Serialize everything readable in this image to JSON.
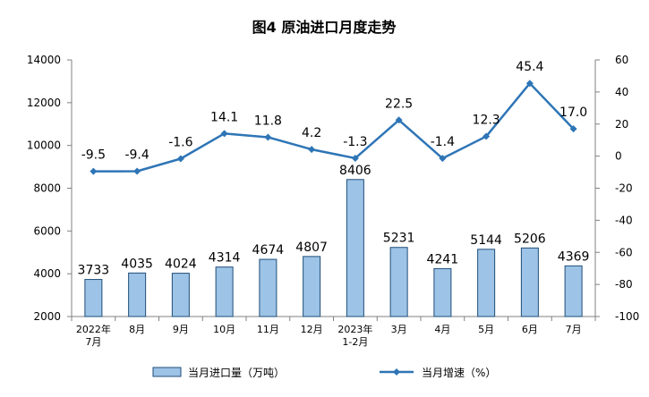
{
  "chart_data": {
    "type": "bar+line",
    "title": "图4 原油进口月度走势",
    "categories": [
      [
        "2022年",
        "7月"
      ],
      [
        "8月"
      ],
      [
        "9月"
      ],
      [
        "10月"
      ],
      [
        "11月"
      ],
      [
        "12月"
      ],
      [
        "2023年",
        "1-2月"
      ],
      [
        "3月"
      ],
      [
        "4月"
      ],
      [
        "5月"
      ],
      [
        "6月"
      ],
      [
        "7月"
      ]
    ],
    "series": [
      {
        "name": "当月进口量（万吨）",
        "type": "bar",
        "axis": "left",
        "values": [
          3733,
          4035,
          4024,
          4314,
          4674,
          4807,
          8406,
          5231,
          4241,
          5144,
          5206,
          4369
        ],
        "labels": [
          "3733",
          "4035",
          "4024",
          "4314",
          "4674",
          "4807",
          "8406",
          "5231",
          "4241",
          "5144",
          "5206",
          "4369"
        ]
      },
      {
        "name": "当月增速（%）",
        "type": "line",
        "axis": "right",
        "values": [
          -9.5,
          -9.4,
          -1.6,
          14.1,
          11.8,
          4.2,
          -1.3,
          22.5,
          -1.4,
          12.3,
          45.4,
          17.0
        ],
        "labels": [
          "-9.5",
          "-9.4",
          "-1.6",
          "14.1",
          "11.8",
          "4.2",
          "-1.3",
          "22.5",
          "-1.4",
          "12.3",
          "45.4",
          "17.0"
        ]
      }
    ],
    "y_left": {
      "min": 2000,
      "max": 14000,
      "ticks": [
        "14000",
        "12000",
        "10000",
        "8000",
        "6000",
        "4000",
        "2000"
      ],
      "tick_values": [
        14000,
        12000,
        10000,
        8000,
        6000,
        4000,
        2000
      ]
    },
    "y_right": {
      "min": -100,
      "max": 60,
      "ticks": [
        "60",
        "40",
        "20",
        "0",
        "-20",
        "-40",
        "-60",
        "-80",
        "-100"
      ],
      "tick_values": [
        60,
        40,
        20,
        0,
        -20,
        -40,
        -60,
        -80,
        -100
      ]
    },
    "grid": false,
    "legend_position": "bottom",
    "colors": {
      "bar_fill": "#9DC3E6",
      "bar_stroke": "#1F4E79",
      "line": "#2E75B6",
      "axis": "#808080"
    }
  }
}
